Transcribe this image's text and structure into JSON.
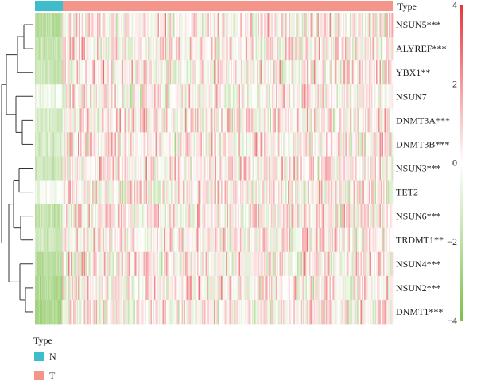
{
  "chart_data": {
    "type": "heatmap",
    "annotation_title": "Type",
    "legend_title": "Type",
    "groups": [
      {
        "label": "N",
        "color": "#3DBDCC"
      },
      {
        "label": "T",
        "color": "#F4948A"
      }
    ],
    "rows": [
      {
        "gene": "NSUN5",
        "sig": "***",
        "label": "NSUN5***",
        "mean_N": -2.2,
        "mean_T": 0.2
      },
      {
        "gene": "ALYREF",
        "sig": "***",
        "label": "ALYREF***",
        "mean_N": -1.8,
        "mean_T": 0.25
      },
      {
        "gene": "YBX1",
        "sig": "**",
        "label": "YBX1**",
        "mean_N": -1.5,
        "mean_T": 0.2
      },
      {
        "gene": "NSUN7",
        "sig": "",
        "label": "NSUN7",
        "mean_N": -0.5,
        "mean_T": 0.05
      },
      {
        "gene": "DNMT3A",
        "sig": "***",
        "label": "DNMT3A***",
        "mean_N": -1.3,
        "mean_T": 0.2
      },
      {
        "gene": "DNMT3B",
        "sig": "***",
        "label": "DNMT3B***",
        "mean_N": -1.2,
        "mean_T": 0.15
      },
      {
        "gene": "NSUN3",
        "sig": "***",
        "label": "NSUN3***",
        "mean_N": -1.6,
        "mean_T": 0.2
      },
      {
        "gene": "TET2",
        "sig": "",
        "label": "TET2",
        "mean_N": -0.3,
        "mean_T": 0.05
      },
      {
        "gene": "NSUN6",
        "sig": "***",
        "label": "NSUN6***",
        "mean_N": -1.7,
        "mean_T": 0.2
      },
      {
        "gene": "TRDMT1",
        "sig": "**",
        "label": "TRDMT1**",
        "mean_N": -1.4,
        "mean_T": 0.15
      },
      {
        "gene": "NSUN4",
        "sig": "***",
        "label": "NSUN4***",
        "mean_N": -2.0,
        "mean_T": 0.2
      },
      {
        "gene": "NSUN2",
        "sig": "***",
        "label": "NSUN2***",
        "mean_N": -2.2,
        "mean_T": 0.2
      },
      {
        "gene": "DNMT1",
        "sig": "***",
        "label": "DNMT1***",
        "mean_N": -2.4,
        "mean_T": 0.2
      }
    ],
    "color_scale": {
      "min": -4,
      "max": 4,
      "low": "#7CC04A",
      "mid": "#FFFFFF",
      "high": "#E8343A",
      "ticks": [
        4,
        2,
        0,
        -2,
        -4
      ],
      "tick_labels": [
        "4",
        "2",
        "0",
        "−2",
        "−4"
      ]
    }
  }
}
